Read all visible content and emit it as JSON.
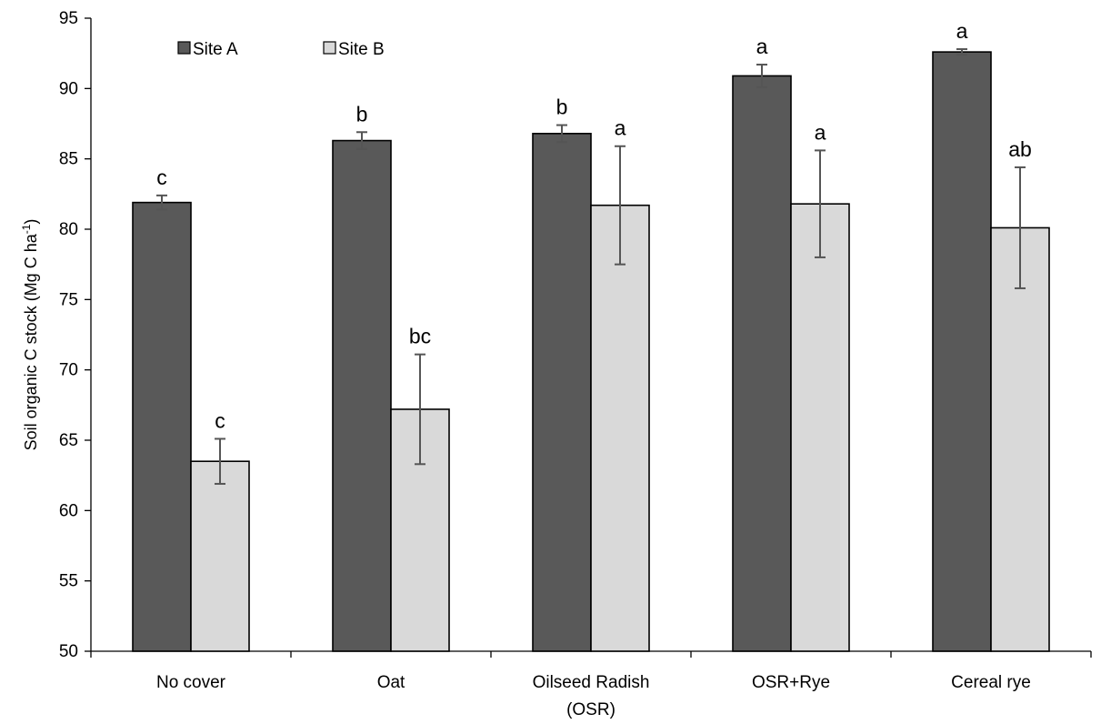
{
  "chart_data": {
    "type": "bar",
    "categories": [
      [
        "No cover"
      ],
      [
        "Oat"
      ],
      [
        "Oilseed Radish",
        "(OSR)"
      ],
      [
        "OSR+Rye"
      ],
      [
        "Cereal rye"
      ]
    ],
    "series": [
      {
        "name": "Site A",
        "color": "#595959",
        "values": [
          81.9,
          86.3,
          86.8,
          90.9,
          92.6
        ],
        "errors": [
          0.5,
          0.6,
          0.6,
          0.8,
          0.2
        ],
        "labels": [
          "c",
          "b",
          "b",
          "a",
          "a"
        ]
      },
      {
        "name": "Site B",
        "color": "#d9d9d9",
        "values": [
          63.5,
          67.2,
          81.7,
          81.8,
          80.1
        ],
        "errors": [
          1.6,
          3.9,
          4.2,
          3.8,
          4.3
        ],
        "labels": [
          "c",
          "bc",
          "a",
          "a",
          "ab"
        ]
      }
    ],
    "ylabel": {
      "main": "Soil organic C  stock (Mg C ha",
      "sup": "-1",
      "close": ")"
    },
    "ylim": [
      50,
      95
    ],
    "yticks": [
      50,
      55,
      60,
      65,
      70,
      75,
      80,
      85,
      90,
      95
    ],
    "grid": false,
    "legend": "top-left"
  }
}
